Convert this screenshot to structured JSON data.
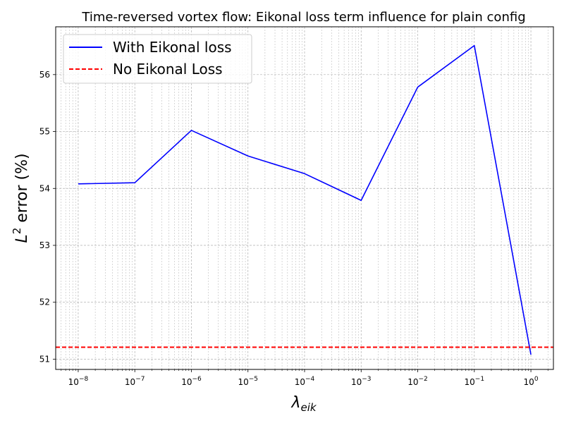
{
  "chart_data": {
    "type": "line",
    "title": "Time-reversed vortex flow: Eikonal loss term influence for plain config",
    "xlabel": "λ",
    "xlabel_sub": "eik",
    "ylabel": "L",
    "ylabel_sup": "2",
    "ylabel_rest": " error (%)",
    "xscale": "log",
    "xlim": [
      4e-09,
      2.5
    ],
    "ylim": [
      50.82,
      56.84
    ],
    "grid": "both (major and minor)",
    "legend_position": "top-left",
    "x_ticks": [
      {
        "base": "10",
        "exp": "−8",
        "value": 1e-08
      },
      {
        "base": "10",
        "exp": "−7",
        "value": 1e-07
      },
      {
        "base": "10",
        "exp": "−6",
        "value": 1e-06
      },
      {
        "base": "10",
        "exp": "−5",
        "value": 1e-05
      },
      {
        "base": "10",
        "exp": "−4",
        "value": 0.0001
      },
      {
        "base": "10",
        "exp": "−3",
        "value": 0.001
      },
      {
        "base": "10",
        "exp": "−2",
        "value": 0.01
      },
      {
        "base": "10",
        "exp": "−1",
        "value": 0.1
      },
      {
        "base": "10",
        "exp": "0",
        "value": 1
      }
    ],
    "y_ticks": [
      51,
      52,
      53,
      54,
      55,
      56
    ],
    "series": [
      {
        "name": "With Eikonal loss",
        "color": "#0000ff",
        "style": "solid",
        "x": [
          1e-08,
          1e-07,
          1e-06,
          1e-05,
          0.0001,
          0.001,
          0.01,
          0.1,
          1
        ],
        "y": [
          54.08,
          54.1,
          55.02,
          54.57,
          54.26,
          53.79,
          55.78,
          56.51,
          51.08
        ]
      },
      {
        "name": "No Eikonal Loss",
        "color": "#ff0000",
        "style": "dashed",
        "hline": 51.21
      }
    ]
  }
}
